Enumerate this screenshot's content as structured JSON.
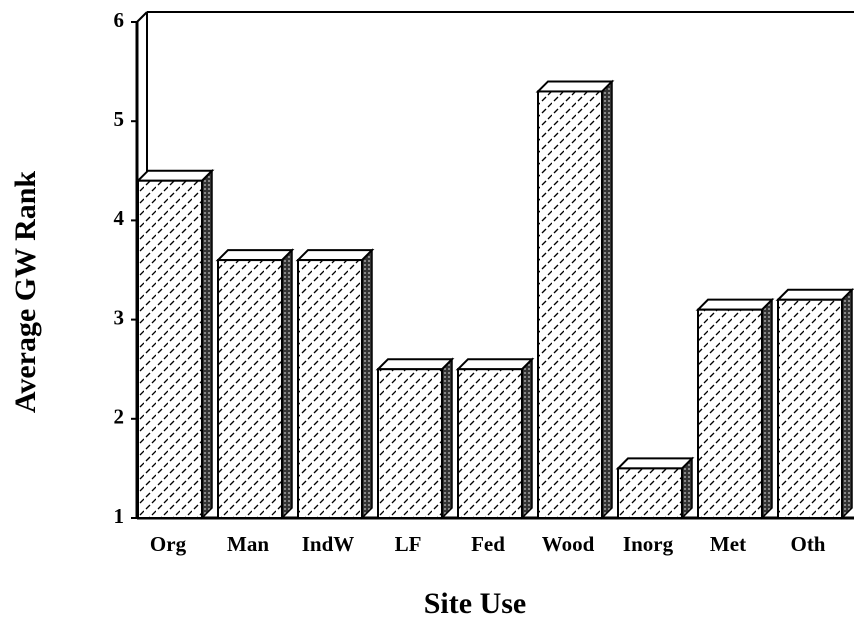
{
  "chart_data": {
    "type": "bar3d",
    "xlabel": "Site Use",
    "ylabel": "Average GW Rank",
    "categories": [
      "Org",
      "Man",
      "IndW",
      "LF",
      "Fed",
      "Wood",
      "Inorg",
      "Met",
      "Oth"
    ],
    "values": [
      4.4,
      3.6,
      3.6,
      2.5,
      2.5,
      5.3,
      1.5,
      3.1,
      3.2
    ],
    "color": "#000000",
    "ylim": [
      1,
      6
    ],
    "yticks": [
      1,
      2,
      3,
      4,
      5,
      6
    ]
  }
}
